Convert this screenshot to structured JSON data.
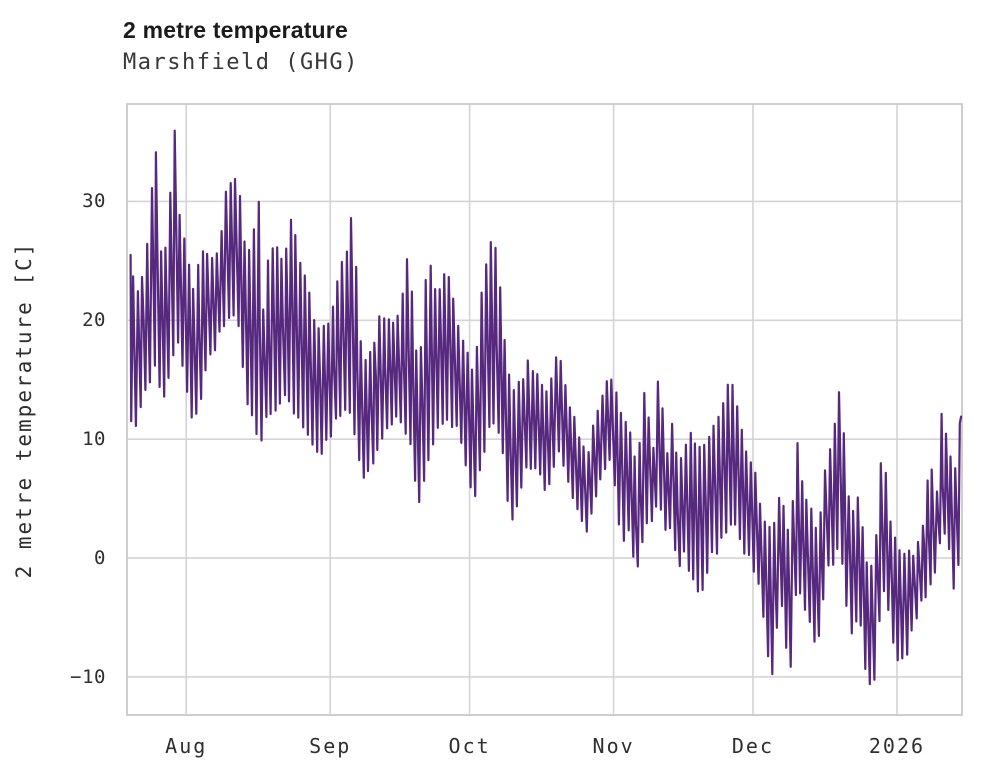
{
  "header": {
    "title": "2 metre temperature",
    "subtitle": "Marshfield (GHG)"
  },
  "chart_data": {
    "type": "line",
    "title": "2 metre temperature",
    "subtitle": "Marshfield (GHG)",
    "xlabel": "",
    "ylabel": "2 metre temperature [C]",
    "series_name": "2 metre temperature",
    "legend": "none",
    "grid": true,
    "colors": {
      "line": "#56287e",
      "grid": "#d4d4d4",
      "spine": "#c9c9c9",
      "title_text": "#1b1b1b",
      "axis_text": "#2f2f2f",
      "background": "#ffffff"
    },
    "y_tick_values": [
      -10,
      0,
      10,
      20,
      30
    ],
    "y_tick_labels": [
      "−10",
      "0",
      "10",
      "20",
      "30"
    ],
    "x_tick_labels": [
      "Aug",
      "Sep",
      "Oct",
      "Nov",
      "Dec",
      "2026"
    ],
    "x_tick_days": [
      12,
      43,
      73,
      104,
      134,
      165
    ],
    "x_start": "late July 2025",
    "x_end": "mid January 2026",
    "xlim_days": [
      -0.75,
      179
    ],
    "ylim": [
      -13.2,
      38.2
    ],
    "units": "C",
    "sampling": "hourly values shown as daily min/max envelope keypoints [day, min, max]",
    "daily_envelope_keypoints": [
      [
        0,
        11.5,
        25.5
      ],
      [
        1.2,
        10.6,
        22
      ],
      [
        3,
        14,
        24
      ],
      [
        5.5,
        16,
        34.8
      ],
      [
        7,
        13.5,
        23
      ],
      [
        9.6,
        17,
        36.2
      ],
      [
        10.5,
        18,
        29.5
      ],
      [
        12,
        14,
        26.5
      ],
      [
        13.5,
        11.5,
        22
      ],
      [
        15,
        13,
        25.5
      ],
      [
        17,
        17,
        25
      ],
      [
        19,
        18.5,
        26
      ],
      [
        21,
        20,
        31.8
      ],
      [
        23,
        20.5,
        32.2
      ],
      [
        24.5,
        15,
        27
      ],
      [
        26,
        12,
        25
      ],
      [
        27.5,
        10,
        31
      ],
      [
        28.5,
        9.7,
        20
      ],
      [
        29.5,
        13,
        24.5
      ],
      [
        31,
        12,
        26.5
      ],
      [
        33,
        14,
        25
      ],
      [
        34.5,
        13,
        28.8
      ],
      [
        36.5,
        12,
        25
      ],
      [
        38.5,
        10.5,
        22
      ],
      [
        41,
        8.5,
        18.5
      ],
      [
        43,
        10,
        20.5
      ],
      [
        45,
        12,
        24
      ],
      [
        46.8,
        13,
        26
      ],
      [
        47.8,
        11,
        28.9
      ],
      [
        50,
        6.5,
        16
      ],
      [
        52,
        8.1,
        17.5
      ],
      [
        54,
        10,
        21
      ],
      [
        56,
        11,
        19.5
      ],
      [
        58,
        12,
        20.5
      ],
      [
        60,
        10,
        26.2
      ],
      [
        62,
        4.5,
        15
      ],
      [
        64,
        8,
        25.6
      ],
      [
        66,
        10.5,
        22
      ],
      [
        68,
        12,
        24.8
      ],
      [
        70,
        11,
        21
      ],
      [
        72,
        8.5,
        17.5
      ],
      [
        74,
        5,
        15.5
      ],
      [
        76,
        8,
        24
      ],
      [
        78,
        12,
        27.7
      ],
      [
        80,
        10,
        21
      ],
      [
        82,
        2.2,
        13.5
      ],
      [
        84,
        6,
        15
      ],
      [
        86,
        8,
        16.5
      ],
      [
        88,
        7,
        15
      ],
      [
        90,
        5.5,
        14
      ],
      [
        92,
        9,
        17.5
      ],
      [
        94,
        6.5,
        14
      ],
      [
        96,
        4.5,
        11
      ],
      [
        98.5,
        2,
        9
      ],
      [
        100,
        5,
        12
      ],
      [
        102,
        7,
        14
      ],
      [
        103.5,
        8,
        15.5
      ],
      [
        106,
        1,
        12
      ],
      [
        107.5,
        2,
        11
      ],
      [
        109,
        -1.5,
        7
      ],
      [
        110.8,
        3,
        14.3
      ],
      [
        112.5,
        3,
        9
      ],
      [
        113.8,
        5,
        16.3
      ],
      [
        115.5,
        2.5,
        9
      ],
      [
        116.5,
        3,
        11
      ],
      [
        118,
        -1,
        8
      ],
      [
        119.5,
        1,
        9
      ],
      [
        121,
        -2,
        10.5
      ],
      [
        123,
        -3.5,
        9
      ],
      [
        125,
        0,
        11
      ],
      [
        127,
        1,
        12
      ],
      [
        129,
        3,
        15.3
      ],
      [
        131,
        2,
        12
      ],
      [
        133,
        0,
        8
      ],
      [
        135,
        -1,
        6.5
      ],
      [
        136,
        -4,
        4
      ],
      [
        138,
        -10.6,
        2
      ],
      [
        140,
        -3,
        5.5
      ],
      [
        142,
        -10.5,
        1
      ],
      [
        143.5,
        -2,
        9.8
      ],
      [
        145,
        -4,
        5
      ],
      [
        148,
        -7.5,
        2.5
      ],
      [
        150,
        -1,
        8
      ],
      [
        153,
        1,
        15
      ],
      [
        154,
        -3,
        8
      ],
      [
        155,
        -6.5,
        4
      ],
      [
        157,
        -4,
        5
      ],
      [
        158.5,
        -10.7,
        0
      ],
      [
        160,
        -11.3,
        -1.5
      ],
      [
        162,
        -2,
        10
      ],
      [
        163.5,
        -5,
        3
      ],
      [
        165,
        -9,
        1
      ],
      [
        167,
        -8.5,
        0.5
      ],
      [
        169,
        -5.5,
        0
      ],
      [
        171,
        -3,
        4
      ],
      [
        172.3,
        -2.5,
        8.6
      ],
      [
        173.5,
        -1,
        5
      ],
      [
        174.3,
        1,
        12.1
      ],
      [
        176,
        2,
        10.5
      ],
      [
        177.3,
        -3,
        6
      ],
      [
        178.8,
        0,
        11.9
      ]
    ]
  }
}
